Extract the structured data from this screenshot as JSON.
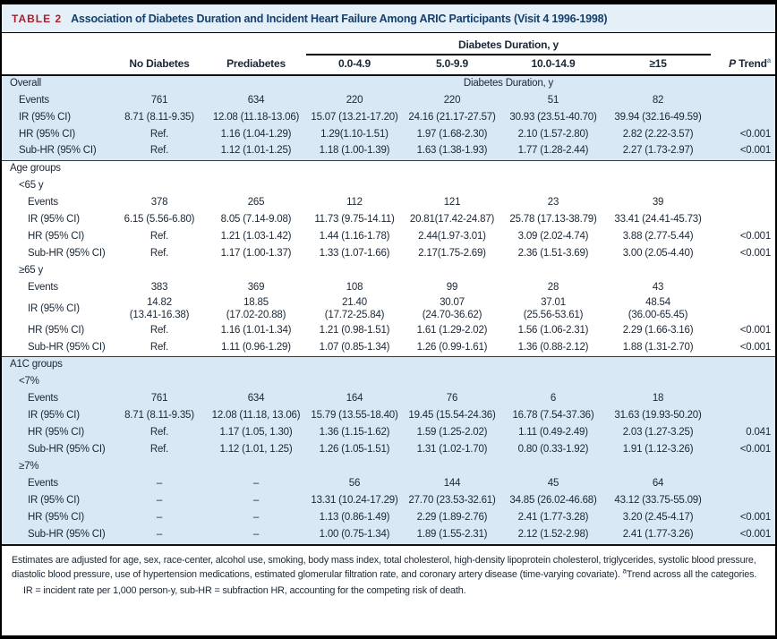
{
  "colors": {
    "accent_red": "#ac1e2d",
    "title_navy": "#14406b",
    "title_bar_blue": "#e5eff7",
    "row_blue": "#d9e8f5",
    "text": "#1b2735",
    "sup_blue": "#4b7db8"
  },
  "table": {
    "label": "TABLE 2",
    "title": "Association of Diabetes Duration and Incident Heart Failure Among ARIC Participants (Visit 4 1996-1998)",
    "header": {
      "group_label": "Diabetes Duration, y",
      "col_no_diabetes": "No Diabetes",
      "col_prediabetes": "Prediabetes",
      "duration_cols": [
        "0.0-4.9",
        "5.0-9.9",
        "10.0-14.9",
        "≥15"
      ],
      "p_trend": {
        "p": "P",
        "label": "Trend",
        "sup": "a"
      }
    },
    "sections": [
      {
        "bg": "blue",
        "rows": [
          {
            "label": "Overall",
            "indent": 0,
            "note": "Diabetes Duration, y"
          },
          {
            "label": "Events",
            "indent": 1,
            "cells": [
              "761",
              "634",
              "220",
              "220",
              "51",
              "82"
            ],
            "p": ""
          },
          {
            "label": "IR (95% CI)",
            "indent": 1,
            "cells": [
              "8.71 (8.11-9.35)",
              "12.08 (11.18-13.06)",
              "15.07 (13.21-17.20)",
              "24.16 (21.17-27.57)",
              "30.93 (23.51-40.70)",
              "39.94 (32.16-49.59)"
            ],
            "p": ""
          },
          {
            "label": "HR (95% CI)",
            "indent": 1,
            "cells": [
              "Ref.",
              "1.16 (1.04-1.29)",
              "1.29(1.10-1.51)",
              "1.97 (1.68-2.30)",
              "2.10 (1.57-2.80)",
              "2.82 (2.22-3.57)"
            ],
            "p": "<0.001"
          },
          {
            "label": "Sub-HR (95% CI)",
            "indent": 1,
            "cells": [
              "Ref.",
              "1.12 (1.01-1.25)",
              "1.18 (1.00-1.39)",
              "1.63 (1.38-1.93)",
              "1.77 (1.28-2.44)",
              "2.27 (1.73-2.97)"
            ],
            "p": "<0.001"
          }
        ]
      },
      {
        "bg": "white",
        "rows": [
          {
            "label": "Age groups",
            "indent": 0
          },
          {
            "label": "<65 y",
            "indent": 1
          },
          {
            "label": "Events",
            "indent": 2,
            "cells": [
              "378",
              "265",
              "112",
              "121",
              "23",
              "39"
            ],
            "p": ""
          },
          {
            "label": "IR (95% CI)",
            "indent": 2,
            "cells": [
              "6.15 (5.56-6.80)",
              "8.05 (7.14-9.08)",
              "11.73 (9.75-14.11)",
              "20.81(17.42-24.87)",
              "25.78 (17.13-38.79)",
              "33.41 (24.41-45.73)"
            ],
            "p": ""
          },
          {
            "label": "HR (95% CI)",
            "indent": 2,
            "cells": [
              "Ref.",
              "1.21 (1.03-1.42)",
              "1.44 (1.16-1.78)",
              "2.44(1.97-3.01)",
              "3.09 (2.02-4.74)",
              "3.88 (2.77-5.44)"
            ],
            "p": "<0.001"
          },
          {
            "label": "Sub-HR (95% CI)",
            "indent": 2,
            "cells": [
              "Ref.",
              "1.17 (1.00-1.37)",
              "1.33 (1.07-1.66)",
              "2.17(1.75-2.69)",
              "2.36 (1.51-3.69)",
              "3.00 (2.05-4.40)"
            ],
            "p": "<0.001"
          },
          {
            "label": "≥65 y",
            "indent": 1
          },
          {
            "label": "Events",
            "indent": 2,
            "cells": [
              "383",
              "369",
              "108",
              "99",
              "28",
              "43"
            ],
            "p": ""
          },
          {
            "label": "IR (95% CI)",
            "indent": 2,
            "cells": [
              "14.82\n(13.41-16.38)",
              "18.85\n(17.02-20.88)",
              "21.40\n(17.72-25.84)",
              "30.07\n(24.70-36.62)",
              "37.01\n(25.56-53.61)",
              "48.54\n(36.00-65.45)"
            ],
            "p": ""
          },
          {
            "label": "HR (95% CI)",
            "indent": 2,
            "cells": [
              "Ref.",
              "1.16 (1.01-1.34)",
              "1.21 (0.98-1.51)",
              "1.61 (1.29-2.02)",
              "1.56 (1.06-2.31)",
              "2.29 (1.66-3.16)"
            ],
            "p": "<0.001"
          },
          {
            "label": "Sub-HR (95% CI)",
            "indent": 2,
            "cells": [
              "Ref.",
              "1.11 (0.96-1.29)",
              "1.07 (0.85-1.34)",
              "1.26 (0.99-1.61)",
              "1.36 (0.88-2.12)",
              "1.88 (1.31-2.70)"
            ],
            "p": "<0.001"
          }
        ]
      },
      {
        "bg": "blue",
        "rows": [
          {
            "label": "A1C groups",
            "indent": 0
          },
          {
            "label": "<7%",
            "indent": 1
          },
          {
            "label": "Events",
            "indent": 2,
            "cells": [
              "761",
              "634",
              "164",
              "76",
              "6",
              "18"
            ],
            "p": ""
          },
          {
            "label": "IR (95% CI)",
            "indent": 2,
            "cells": [
              "8.71 (8.11-9.35)",
              "12.08 (11.18, 13.06)",
              "15.79 (13.55-18.40)",
              "19.45 (15.54-24.36)",
              "16.78 (7.54-37.36)",
              "31.63 (19.93-50.20)"
            ],
            "p": ""
          },
          {
            "label": "HR (95% CI)",
            "indent": 2,
            "cells": [
              "Ref.",
              "1.17 (1.05, 1.30)",
              "1.36 (1.15-1.62)",
              "1.59 (1.25-2.02)",
              "1.11 (0.49-2.49)",
              "2.03 (1.27-3.25)"
            ],
            "p": "0.041"
          },
          {
            "label": "Sub-HR (95% CI)",
            "indent": 2,
            "cells": [
              "Ref.",
              "1.12 (1.01, 1.25)",
              "1.26 (1.05-1.51)",
              "1.31 (1.02-1.70)",
              "0.80 (0.33-1.92)",
              "1.91 (1.12-3.26)"
            ],
            "p": "<0.001"
          },
          {
            "label": "≥7%",
            "indent": 1
          },
          {
            "label": "Events",
            "indent": 2,
            "cells": [
              "–",
              "–",
              "56",
              "144",
              "45",
              "64"
            ],
            "p": ""
          },
          {
            "label": "IR (95% CI)",
            "indent": 2,
            "cells": [
              "–",
              "–",
              "13.31 (10.24-17.29)",
              "27.70 (23.53-32.61)",
              "34.85 (26.02-46.68)",
              "43.12 (33.75-55.09)"
            ],
            "p": ""
          },
          {
            "label": "HR (95% CI)",
            "indent": 2,
            "cells": [
              "–",
              "–",
              "1.13 (0.86-1.49)",
              "2.29 (1.89-2.76)",
              "2.41 (1.77-3.28)",
              "3.20 (2.45-4.17)"
            ],
            "p": "<0.001"
          },
          {
            "label": "Sub-HR (95% CI)",
            "indent": 2,
            "cells": [
              "–",
              "–",
              "1.00 (0.75-1.34)",
              "1.89 (1.55-2.31)",
              "2.12 (1.52-2.98)",
              "2.41 (1.77-3.26)"
            ],
            "p": "<0.001"
          }
        ]
      }
    ]
  },
  "footnotes": {
    "adjustment": "Estimates are adjusted for age, sex, race-center, alcohol use, smoking, body mass index, total cholesterol, high-density lipoprotein cholesterol, triglycerides, systolic blood pressure, diastolic blood pressure, use of hypertension medications, estimated glomerular filtration rate, and coronary artery disease (time-varying covariate).",
    "trend_sup": "a",
    "trend_note": "Trend across all the categories.",
    "abbrev": "IR = incident rate per 1,000 person-y, sub-HR = subfraction HR, accounting for the competing risk of death."
  }
}
